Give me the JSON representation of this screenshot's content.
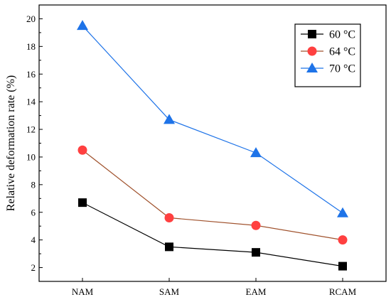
{
  "chart_data": {
    "type": "line",
    "categories": [
      "NAM",
      "SAM",
      "EAM",
      "RCAM"
    ],
    "series": [
      {
        "name": "60 °C",
        "values": [
          6.7,
          3.5,
          3.1,
          2.1
        ],
        "marker": "square",
        "marker_color": "#000000",
        "line_color": "#000000"
      },
      {
        "name": "64 °C",
        "values": [
          10.5,
          5.6,
          5.05,
          4.0
        ],
        "marker": "circle",
        "marker_color": "#ff4040",
        "line_color": "#a0522d"
      },
      {
        "name": "70 °C",
        "values": [
          19.5,
          12.7,
          10.3,
          5.95
        ],
        "marker": "triangle",
        "marker_color": "#1e73e8",
        "line_color": "#1e73e8"
      }
    ],
    "xlabel": "",
    "ylabel": "Relative deformation rate (%)",
    "ylim": [
      1,
      21
    ],
    "yticks": [
      2,
      4,
      6,
      8,
      10,
      12,
      14,
      16,
      18,
      20
    ],
    "grid": false,
    "legend_position": "top-right"
  }
}
